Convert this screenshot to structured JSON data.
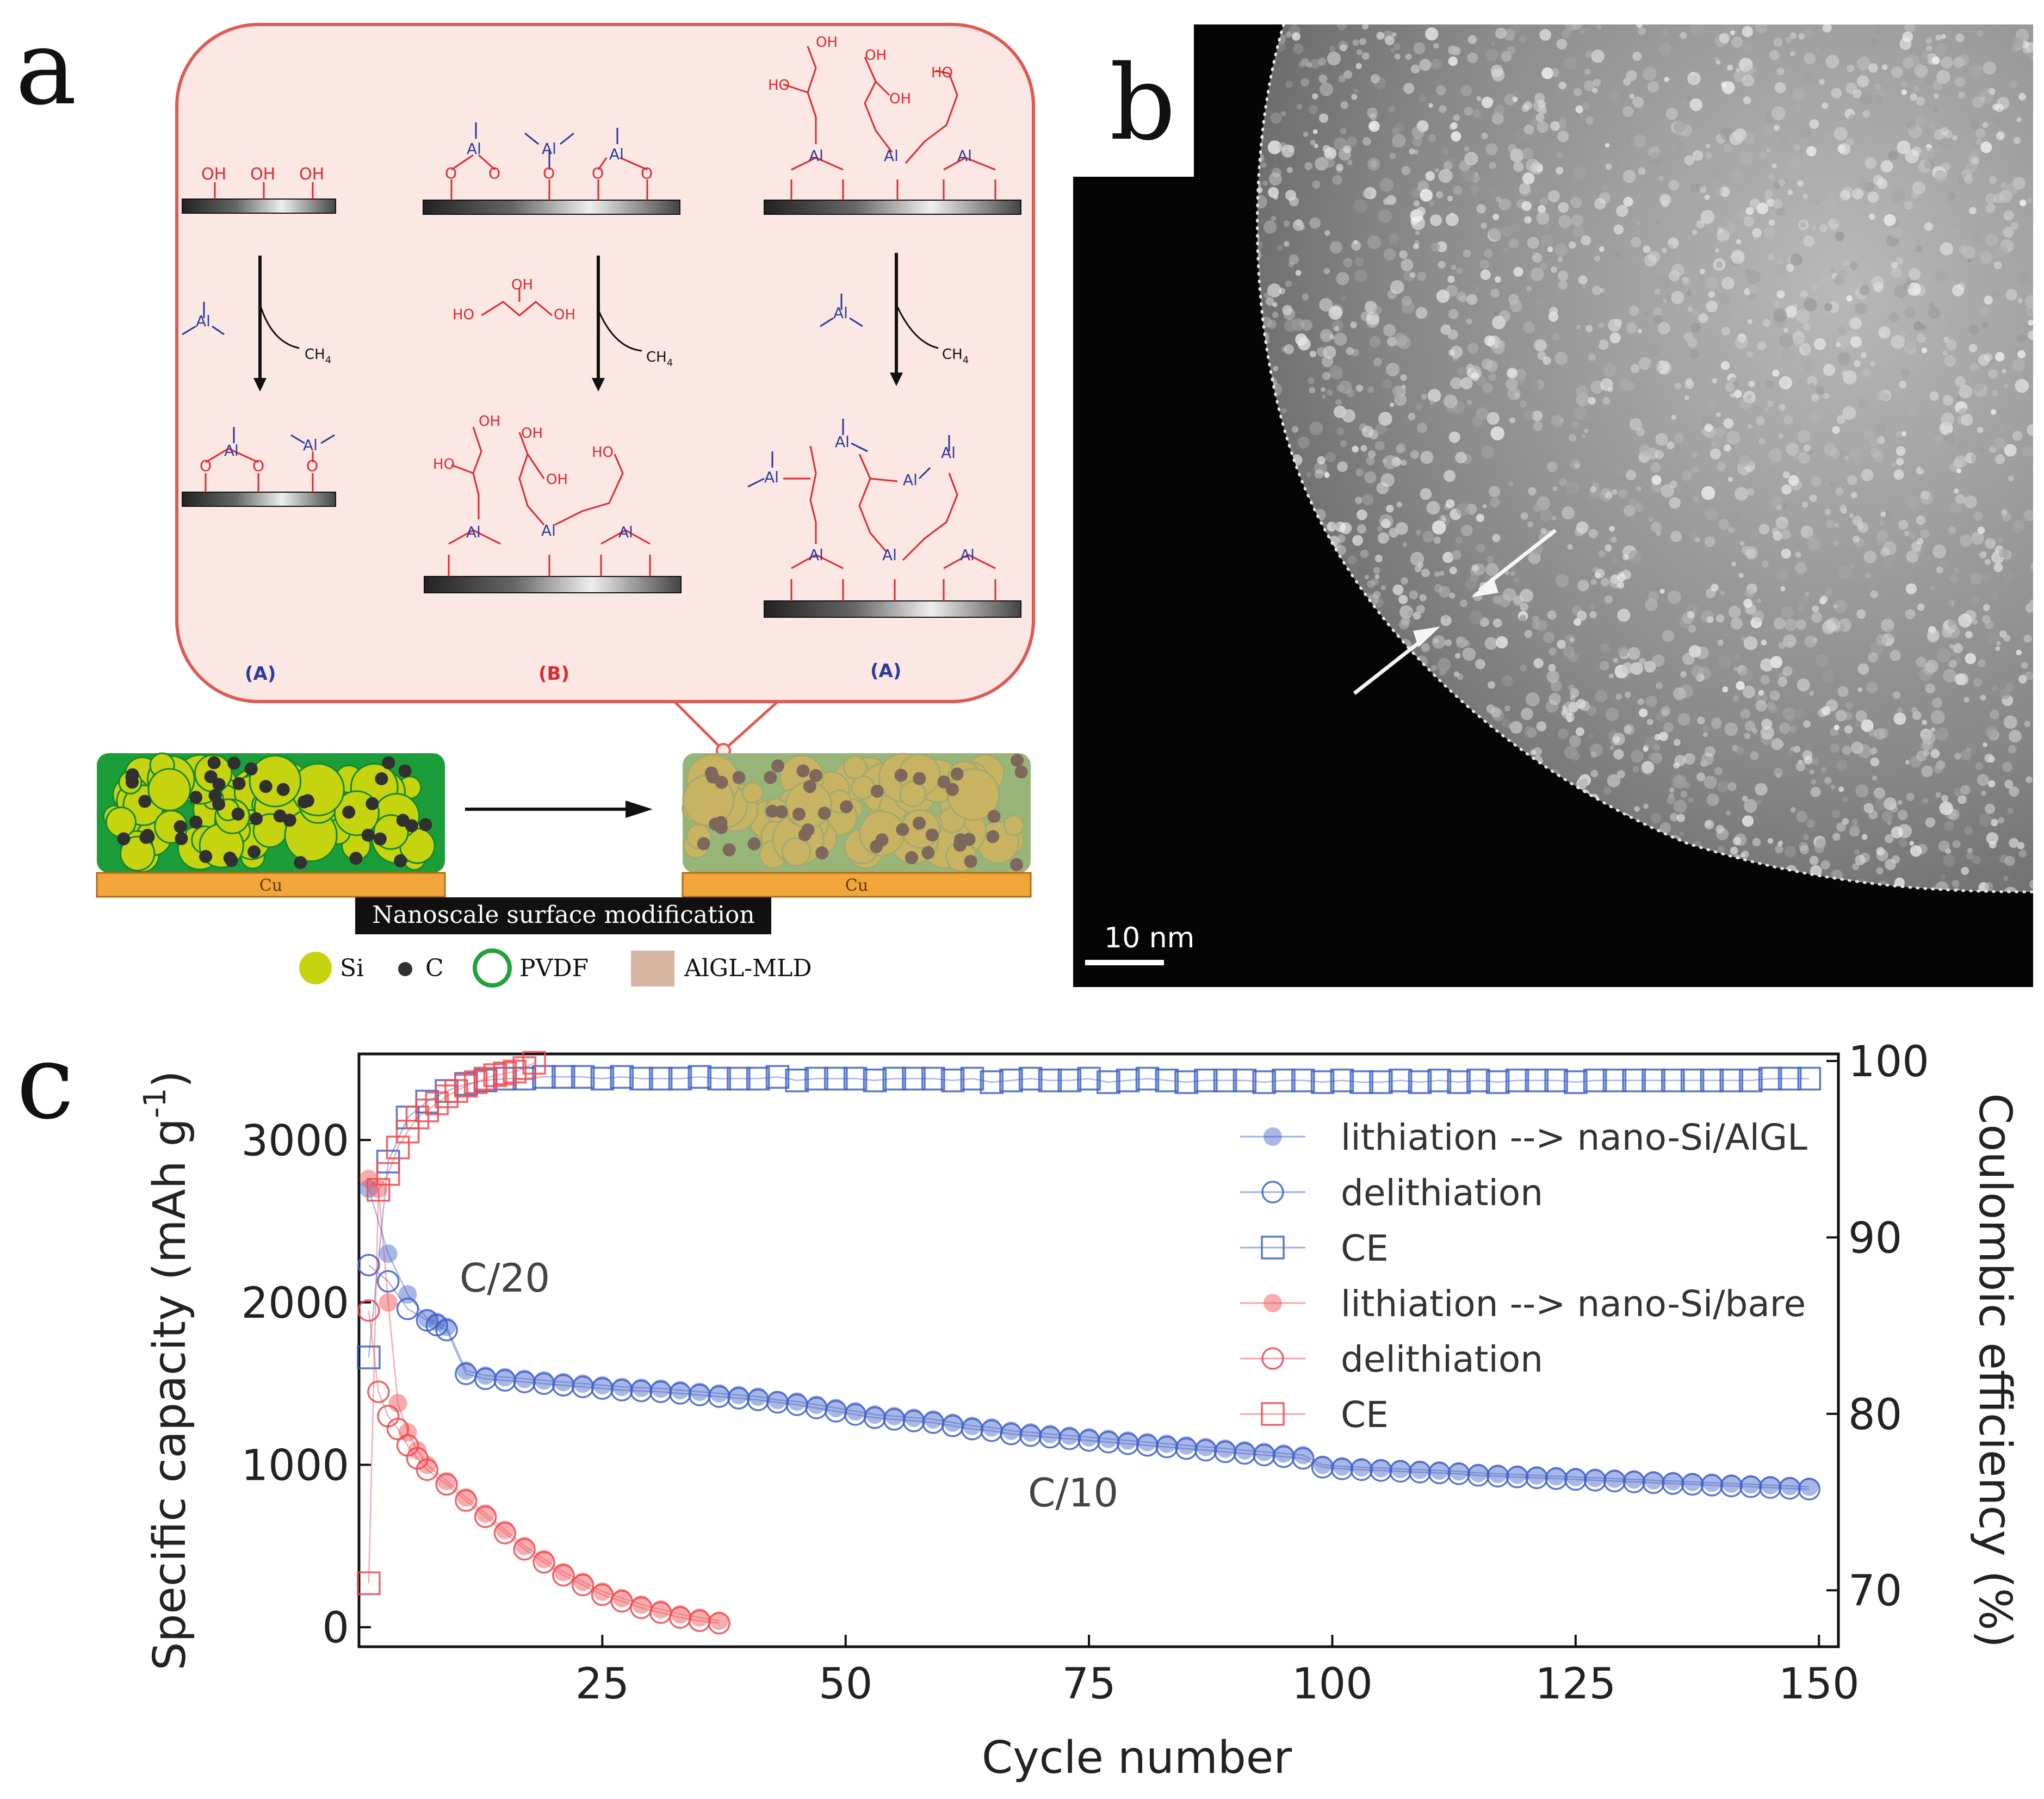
{
  "panels": {
    "a": "a",
    "b": "b",
    "c": "c"
  },
  "panel_a": {
    "scheme_labels": [
      "(A)",
      "(B)",
      "(A)"
    ],
    "chem": {
      "oh": "OH",
      "ho": "HO",
      "al": "Al",
      "o": "O",
      "ch4": "CH",
      "ch4_sub": "4"
    },
    "bottom": {
      "cu": "Cu",
      "modification_label": "Nanoscale surface modification",
      "legend": [
        {
          "label": "Si",
          "color": "#c6d40f"
        },
        {
          "label": "C",
          "color": "#303030"
        },
        {
          "label": "PVDF",
          "color": "#1fa33a"
        },
        {
          "label": "AlGL-MLD",
          "color": "#d6b6a2"
        }
      ]
    },
    "colors": {
      "scheme_bg": "#fbe7e3",
      "scheme_border": "#e05a55",
      "red": "#e0282e",
      "blue": "#2a3b9a",
      "electrode_green": "#1b9e3a",
      "cu": "#f2a53a"
    }
  },
  "panel_b": {
    "scale_bar": "10 nm"
  },
  "chart_data": {
    "type": "scatter",
    "xlabel": "Cycle number",
    "ylabel": "Specific capacity (mAh g",
    "ylabel_sup": "-1",
    "ylabel_close": ")",
    "y2label": "Coulombic efficiency (%)",
    "xlim": [
      0,
      152
    ],
    "ylim": [
      -120,
      3530
    ],
    "y2lim": [
      66.8,
      100.4
    ],
    "xticks": [
      25,
      50,
      75,
      100,
      125,
      150
    ],
    "yticks": [
      0,
      1000,
      2000,
      3000
    ],
    "y2ticks": [
      70,
      80,
      90,
      100
    ],
    "legend_position": "top-right",
    "annotations": [
      {
        "text": "C/20",
        "x": 14.5,
        "y": 2150
      },
      {
        "text": "C/10",
        "x": 74,
        "y": 830
      }
    ],
    "series": [
      {
        "name": "lithiation --> nano-Si/AlGL",
        "axis": "left",
        "marker": "filled-circle",
        "color": "#3f5fc6",
        "x": [
          1,
          3,
          5,
          7,
          8,
          9,
          11,
          13,
          15,
          17,
          19,
          21,
          23,
          25,
          27,
          29,
          31,
          33,
          35,
          37,
          39,
          41,
          43,
          45,
          47,
          49,
          51,
          53,
          55,
          57,
          59,
          61,
          63,
          65,
          67,
          69,
          71,
          73,
          75,
          77,
          79,
          81,
          83,
          85,
          87,
          89,
          91,
          93,
          95,
          97,
          99,
          101,
          103,
          105,
          107,
          109,
          111,
          113,
          115,
          117,
          119,
          121,
          123,
          125,
          127,
          129,
          131,
          133,
          135,
          137,
          139,
          141,
          143,
          145,
          147,
          149
        ],
        "y": [
          2700,
          2300,
          2050,
          1900,
          1880,
          1850,
          1580,
          1550,
          1540,
          1530,
          1520,
          1510,
          1500,
          1490,
          1480,
          1475,
          1470,
          1460,
          1450,
          1440,
          1430,
          1420,
          1400,
          1390,
          1370,
          1350,
          1330,
          1310,
          1300,
          1290,
          1280,
          1260,
          1240,
          1230,
          1210,
          1200,
          1190,
          1180,
          1170,
          1160,
          1150,
          1140,
          1130,
          1120,
          1110,
          1100,
          1090,
          1080,
          1070,
          1060,
          1000,
          990,
          985,
          980,
          975,
          970,
          965,
          960,
          950,
          945,
          940,
          935,
          930,
          925,
          920,
          915,
          910,
          905,
          900,
          895,
          890,
          885,
          880,
          875,
          870,
          865
        ]
      },
      {
        "name": "delithiation",
        "axis": "left",
        "marker": "open-circle",
        "color": "#3f5fc6",
        "x": [
          1,
          3,
          5,
          7,
          8,
          9,
          11,
          13,
          15,
          17,
          19,
          21,
          23,
          25,
          27,
          29,
          31,
          33,
          35,
          37,
          39,
          41,
          43,
          45,
          47,
          49,
          51,
          53,
          55,
          57,
          59,
          61,
          63,
          65,
          67,
          69,
          71,
          73,
          75,
          77,
          79,
          81,
          83,
          85,
          87,
          89,
          91,
          93,
          95,
          97,
          99,
          101,
          103,
          105,
          107,
          109,
          111,
          113,
          115,
          117,
          119,
          121,
          123,
          125,
          127,
          129,
          131,
          133,
          135,
          137,
          139,
          141,
          143,
          145,
          147,
          149
        ],
        "y": [
          2230,
          2130,
          1960,
          1890,
          1860,
          1830,
          1560,
          1530,
          1520,
          1510,
          1500,
          1490,
          1480,
          1470,
          1460,
          1455,
          1450,
          1440,
          1430,
          1420,
          1410,
          1400,
          1385,
          1370,
          1350,
          1330,
          1310,
          1290,
          1280,
          1270,
          1260,
          1240,
          1220,
          1210,
          1190,
          1180,
          1170,
          1160,
          1150,
          1140,
          1130,
          1120,
          1110,
          1100,
          1090,
          1080,
          1070,
          1060,
          1050,
          1040,
          985,
          975,
          970,
          965,
          960,
          955,
          950,
          945,
          935,
          930,
          925,
          920,
          915,
          910,
          905,
          900,
          895,
          890,
          885,
          880,
          875,
          870,
          865,
          860,
          855,
          850
        ]
      },
      {
        "name": "CE",
        "axis": "right",
        "marker": "open-square",
        "color": "#3f5fc6",
        "x": [
          1,
          3,
          5,
          7,
          9,
          11,
          13,
          15,
          17,
          19,
          21,
          23,
          25,
          27,
          29,
          31,
          33,
          35,
          37,
          39,
          41,
          43,
          45,
          47,
          49,
          51,
          53,
          55,
          57,
          59,
          61,
          63,
          65,
          67,
          69,
          71,
          73,
          75,
          77,
          79,
          81,
          83,
          85,
          87,
          89,
          91,
          93,
          95,
          97,
          99,
          101,
          103,
          105,
          107,
          109,
          111,
          113,
          115,
          117,
          119,
          121,
          123,
          125,
          127,
          129,
          131,
          133,
          135,
          137,
          139,
          141,
          143,
          145,
          147,
          149
        ],
        "y": [
          83.2,
          94.3,
          96.8,
          97.7,
          98.3,
          98.7,
          98.9,
          99.0,
          99.0,
          99.1,
          99.1,
          99.1,
          99.0,
          99.1,
          99.0,
          99.0,
          99.0,
          99.1,
          99.0,
          99.0,
          99.0,
          99.1,
          98.9,
          99.0,
          99.0,
          99.0,
          98.9,
          99.0,
          99.0,
          99.0,
          98.9,
          99.0,
          98.8,
          98.9,
          99.0,
          98.9,
          98.9,
          99.0,
          98.8,
          98.9,
          99.0,
          98.9,
          98.8,
          98.9,
          98.9,
          98.9,
          98.8,
          98.9,
          98.9,
          98.8,
          98.9,
          98.8,
          98.8,
          98.9,
          98.8,
          98.9,
          98.8,
          98.9,
          98.8,
          98.9,
          98.9,
          98.9,
          98.8,
          98.9,
          98.9,
          98.9,
          98.9,
          98.9,
          98.9,
          98.9,
          98.9,
          98.9,
          99.0,
          99.0,
          99.0
        ]
      },
      {
        "name": "lithiation --> nano-Si/bare",
        "axis": "left",
        "marker": "filled-circle",
        "color": "#ee4a4f",
        "x": [
          1,
          2,
          3,
          4,
          5,
          6,
          7,
          9,
          11,
          13,
          15,
          17,
          19,
          21,
          23,
          25,
          27,
          29,
          31,
          33,
          35,
          37
        ],
        "y": [
          2760,
          2700,
          2000,
          1380,
          1200,
          1090,
          1000,
          900,
          800,
          700,
          600,
          500,
          420,
          340,
          280,
          220,
          180,
          140,
          110,
          80,
          60,
          40
        ]
      },
      {
        "name": "delithiation",
        "axis": "left",
        "marker": "open-circle",
        "color": "#ee4a4f",
        "x": [
          1,
          2,
          3,
          4,
          5,
          6,
          7,
          9,
          11,
          13,
          15,
          17,
          19,
          21,
          23,
          25,
          27,
          29,
          31,
          33,
          35,
          37
        ],
        "y": [
          1950,
          1450,
          1300,
          1220,
          1120,
          1040,
          970,
          880,
          780,
          680,
          580,
          480,
          400,
          320,
          260,
          200,
          160,
          120,
          90,
          60,
          40,
          25
        ]
      },
      {
        "name": "CE",
        "axis": "right",
        "marker": "open-square",
        "color": "#ee4a4f",
        "x": [
          1,
          2,
          3,
          4,
          5,
          6,
          7,
          8,
          9,
          10,
          11,
          12,
          13,
          14,
          15,
          16,
          17,
          18
        ],
        "y": [
          70.4,
          92.7,
          93.6,
          95.1,
          96.0,
          96.8,
          97.2,
          97.6,
          98.0,
          98.3,
          98.6,
          98.8,
          99.0,
          99.2,
          99.3,
          99.4,
          99.6,
          99.9
        ]
      }
    ]
  }
}
